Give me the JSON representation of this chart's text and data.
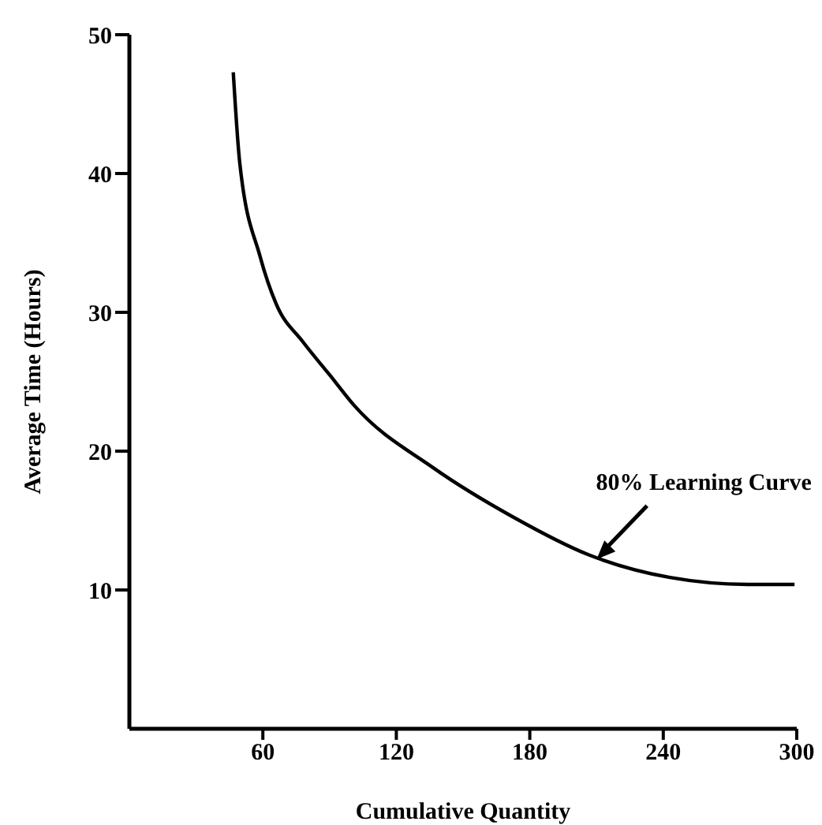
{
  "chart_data": {
    "type": "line",
    "xlabel": "Cumulative Quantity",
    "ylabel": "Average Time (Hours)",
    "x": [
      46.7,
      49.6,
      58.8,
      66,
      77.9,
      90,
      101,
      136.6,
      172,
      207,
      243,
      278,
      299
    ],
    "series": [
      {
        "color": "#000000",
        "values": [
          47.3,
          40.8,
          34,
          30.6,
          27.9,
          25.5,
          23.3,
          18.8,
          15.3,
          12.5,
          10.9,
          10.4,
          10.4
        ]
      }
    ],
    "xlim": [
      0,
      300
    ],
    "xticks": [
      60,
      120,
      180,
      240,
      300
    ],
    "ylim": [
      0,
      50
    ],
    "yticks": [
      10,
      20,
      30,
      40,
      50
    ],
    "grid": false,
    "legend": false,
    "marker": "none",
    "line_style": "solid",
    "annotations": [
      {
        "text": "80% Learning Curve",
        "x": 210,
        "y": 12.2
      }
    ]
  }
}
